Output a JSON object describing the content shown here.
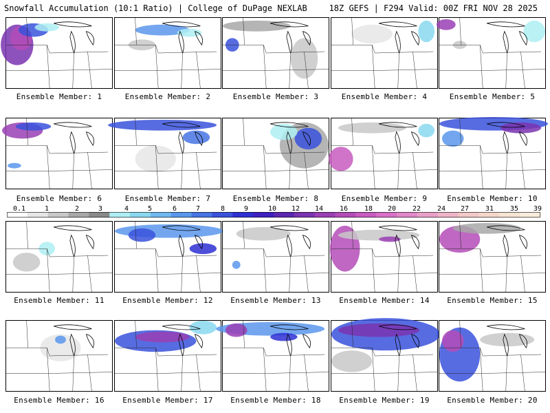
{
  "header": {
    "title_left": "Snowfall Accumulation (10:1 Ratio) | College of DuPage NEXLAB",
    "title_right": "18Z GEFS | F294 Valid: 00Z FRI NOV 28 2025"
  },
  "members": [
    {
      "label": "Ensemble Member: 1"
    },
    {
      "label": "Ensemble Member: 2"
    },
    {
      "label": "Ensemble Member: 3"
    },
    {
      "label": "Ensemble Member: 4"
    },
    {
      "label": "Ensemble Member: 5"
    },
    {
      "label": "Ensemble Member: 6"
    },
    {
      "label": "Ensemble Member: 7"
    },
    {
      "label": "Ensemble Member: 8"
    },
    {
      "label": "Ensemble Member: 9"
    },
    {
      "label": "Ensemble Member: 10"
    },
    {
      "label": "Ensemble Member: 11"
    },
    {
      "label": "Ensemble Member: 12"
    },
    {
      "label": "Ensemble Member: 13"
    },
    {
      "label": "Ensemble Member: 14"
    },
    {
      "label": "Ensemble Member: 15"
    },
    {
      "label": "Ensemble Member: 16"
    },
    {
      "label": "Ensemble Member: 17"
    },
    {
      "label": "Ensemble Member: 18"
    },
    {
      "label": "Ensemble Member: 19"
    },
    {
      "label": "Ensemble Member: 20"
    }
  ],
  "legend": {
    "values": [
      "0.1",
      "1",
      "2",
      "3",
      "4",
      "5",
      "6",
      "7",
      "8",
      "9",
      "10",
      "12",
      "14",
      "16",
      "18",
      "20",
      "22",
      "24",
      "27",
      "31",
      "35",
      "39"
    ],
    "colors": [
      "#ffffff",
      "#e6e6e6",
      "#c8c8c8",
      "#a8a8a8",
      "#8a8a8a",
      "#aeeef2",
      "#8ad8f0",
      "#70b8f0",
      "#5a96ec",
      "#4874e4",
      "#3a52dc",
      "#2e30d4",
      "#3c20c0",
      "#5a28b0",
      "#7a34b0",
      "#9a40b4",
      "#b44cb8",
      "#c85cc0",
      "#d870c8",
      "#e088c8",
      "#e8a0c8",
      "#eeb4c8",
      "#f2c8c8",
      "#f4d8cc",
      "#f6e4d4",
      "#f8ecdc"
    ]
  }
}
